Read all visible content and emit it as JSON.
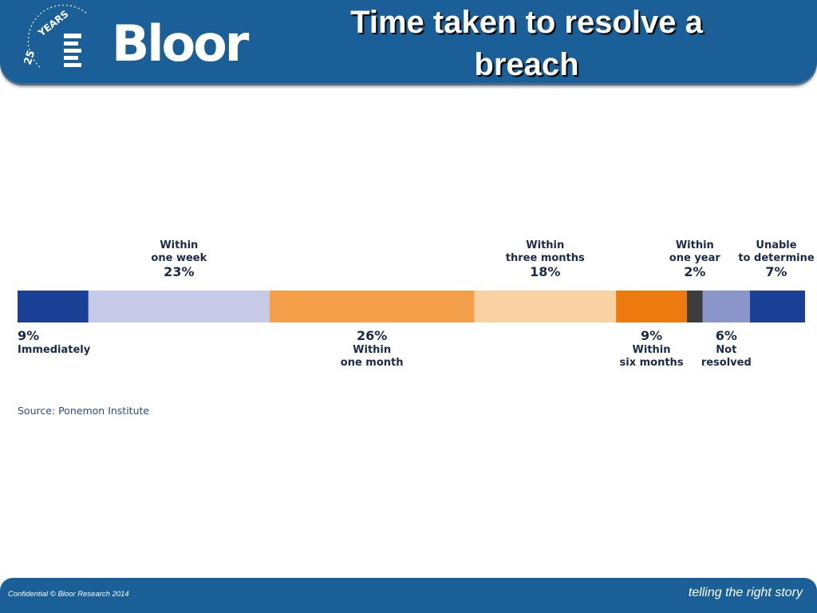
{
  "header": {
    "title_line1": "Time taken to resolve a",
    "title_line2": "breach",
    "logo_text": "Bloor",
    "logo_badge": "25 YEARS",
    "color": "#1a5f98"
  },
  "chart_data": {
    "type": "bar",
    "orientation": "horizontal-stacked",
    "title": "",
    "unit": "%",
    "segments": [
      {
        "label": "Immediately",
        "value": 9,
        "display": "9%",
        "label_pos": "below",
        "lines": [
          "Immediately"
        ],
        "color": "#1a4096"
      },
      {
        "label": "Within one week",
        "value": 23,
        "display": "23%",
        "label_pos": "above",
        "lines": [
          "Within",
          "one week"
        ],
        "color": "#c6cae6"
      },
      {
        "label": "Within one month",
        "value": 26,
        "display": "26%",
        "label_pos": "below",
        "lines": [
          "Within",
          "one month"
        ],
        "color": "#f4a04a"
      },
      {
        "label": "Within three months",
        "value": 18,
        "display": "18%",
        "label_pos": "above",
        "lines": [
          "Within",
          "three months"
        ],
        "color": "#f8d2a2"
      },
      {
        "label": "Within six months",
        "value": 9,
        "display": "9%",
        "label_pos": "below",
        "lines": [
          "Within",
          "six months"
        ],
        "color": "#ec7a0e"
      },
      {
        "label": "Within one year",
        "value": 2,
        "display": "2%",
        "label_pos": "above",
        "lines": [
          "Within",
          "one year"
        ],
        "color": "#3c3c3c"
      },
      {
        "label": "Not resolved",
        "value": 6,
        "display": "6%",
        "label_pos": "below",
        "lines": [
          "Not",
          "resolved"
        ],
        "color": "#8a96ca"
      },
      {
        "label": "Unable to determine",
        "value": 7,
        "display": "7%",
        "label_pos": "above",
        "lines": [
          "Unable",
          "to determine"
        ],
        "color": "#1a4096"
      }
    ],
    "source": "Source: Ponemon Institute"
  },
  "footer": {
    "confidential": "Confidential © Bloor Research 2014",
    "tagline": "telling the right story"
  }
}
